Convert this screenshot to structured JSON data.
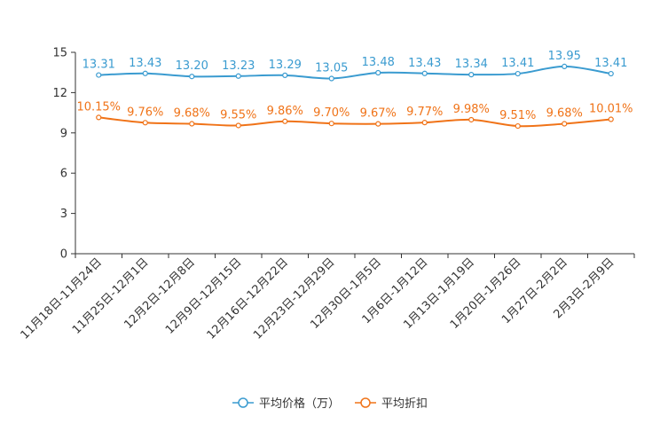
{
  "chart_data": {
    "type": "line",
    "title": "",
    "xlabel": "",
    "ylabel": "",
    "ylim": [
      0,
      15
    ],
    "yticks": [
      0,
      3,
      6,
      9,
      12,
      15
    ],
    "grid": false,
    "legend_position": "bottom",
    "categories": [
      "11月18日-11月24日",
      "11月25日-12月1日",
      "12月2日-12月8日",
      "12月9日-12月15日",
      "12月16日-12月22日",
      "12月23日-12月29日",
      "12月30日-1月5日",
      "1月6日-1月12日",
      "1月13日-1月19日",
      "1月20日-1月26日",
      "1月27日-2月2日",
      "2月3日-2月9日"
    ],
    "series": [
      {
        "name": "平均价格（万）",
        "color": "#3a9bd0",
        "values": [
          13.31,
          13.43,
          13.2,
          13.23,
          13.29,
          13.05,
          13.48,
          13.43,
          13.34,
          13.41,
          13.95,
          13.41
        ],
        "labels": [
          "13.31",
          "13.43",
          "13.20",
          "13.23",
          "13.29",
          "13.05",
          "13.48",
          "13.43",
          "13.34",
          "13.41",
          "13.95",
          "13.41"
        ]
      },
      {
        "name": "平均折扣",
        "color": "#f07318",
        "values": [
          10.15,
          9.76,
          9.68,
          9.55,
          9.86,
          9.7,
          9.67,
          9.77,
          9.98,
          9.51,
          9.68,
          10.01
        ],
        "labels": [
          "10.15%",
          "9.76%",
          "9.68%",
          "9.55%",
          "9.86%",
          "9.70%",
          "9.67%",
          "9.77%",
          "9.98%",
          "9.51%",
          "9.68%",
          "10.01%"
        ]
      }
    ]
  }
}
